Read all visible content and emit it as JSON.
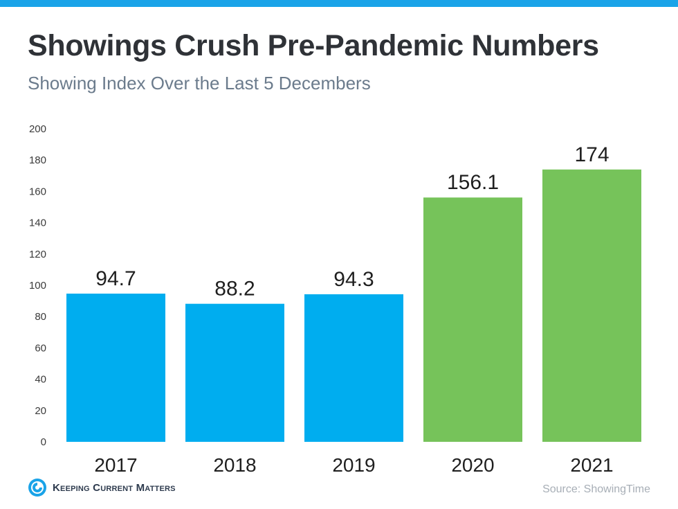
{
  "header": {
    "title": "Showings Crush Pre-Pandemic Numbers",
    "subtitle": "Showing Index Over the Last 5 Decembers"
  },
  "footer": {
    "logo_text": "Keeping Current Matters",
    "source": "Source: ShowingTime"
  },
  "colors": {
    "accent_bar": "#1aa3e8",
    "pre_pandemic": "#00adef",
    "pandemic": "#76c35a"
  },
  "chart_data": {
    "type": "bar",
    "title": "Showings Crush Pre-Pandemic Numbers",
    "subtitle": "Showing Index Over the Last 5 Decembers",
    "categories": [
      "2017",
      "2018",
      "2019",
      "2020",
      "2021"
    ],
    "values": [
      94.7,
      88.2,
      94.3,
      156.1,
      174
    ],
    "value_labels": [
      "94.7",
      "88.2",
      "94.3",
      "156.1",
      "174"
    ],
    "bar_colors": [
      "#00adef",
      "#00adef",
      "#00adef",
      "#76c35a",
      "#76c35a"
    ],
    "ylim": [
      0,
      200
    ],
    "yticks": [
      0,
      20,
      40,
      60,
      80,
      100,
      120,
      140,
      160,
      180,
      200
    ],
    "grid": false,
    "xlabel": "",
    "ylabel": ""
  }
}
